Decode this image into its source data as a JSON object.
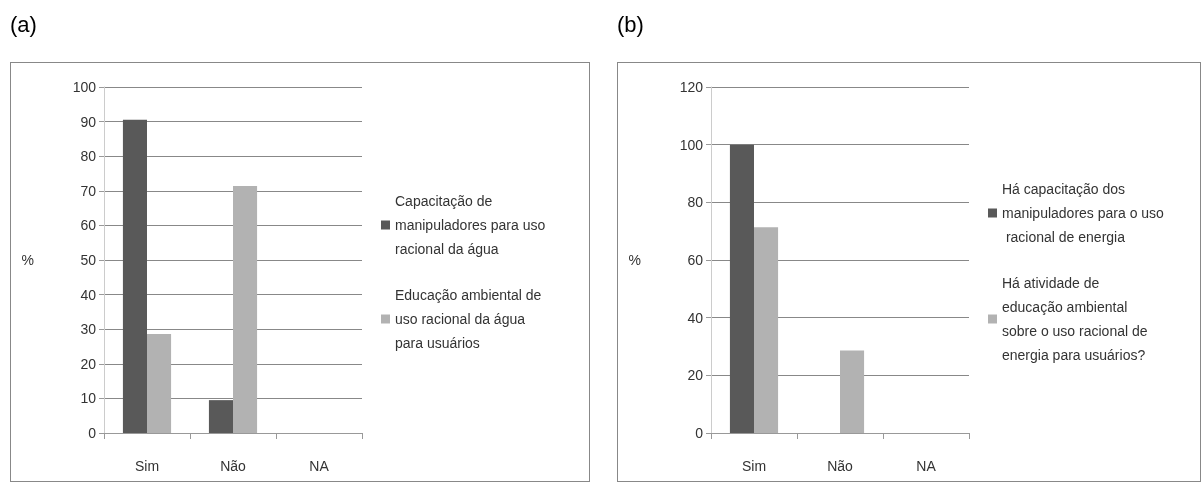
{
  "chart_data": [
    {
      "type": "bar",
      "title": "(a)",
      "ylabel": "%",
      "categories": [
        "Sim",
        "Não",
        "NA"
      ],
      "series": [
        {
          "name": "Capacitação de manipuladores para uso racional da água",
          "color": "#595959",
          "values": [
            90.5,
            9.5,
            0
          ]
        },
        {
          "name": "Educação ambiental de uso racional da água para usuários",
          "color": "#b2b2b2",
          "values": [
            28.6,
            71.4,
            0
          ]
        }
      ],
      "ylim": [
        0,
        100
      ],
      "yticks": [
        0,
        10,
        20,
        30,
        40,
        50,
        60,
        70,
        80,
        90,
        100
      ],
      "grid": "y",
      "legend": "right"
    },
    {
      "type": "bar",
      "title": "(b)",
      "ylabel": "%",
      "categories": [
        "Sim",
        "Não",
        "NA"
      ],
      "series": [
        {
          "name": "Há capacitação dos manipuladores para o uso racional de energia",
          "color": "#595959",
          "values": [
            100,
            0,
            0
          ]
        },
        {
          "name": "Há atividade de educação ambiental sobre o uso racional de energia para usuários?",
          "color": "#b2b2b2",
          "values": [
            71.4,
            28.6,
            0
          ]
        }
      ],
      "ylim": [
        0,
        120
      ],
      "yticks": [
        0,
        20,
        40,
        60,
        80,
        100,
        120
      ],
      "grid": "y",
      "legend": "right"
    }
  ]
}
